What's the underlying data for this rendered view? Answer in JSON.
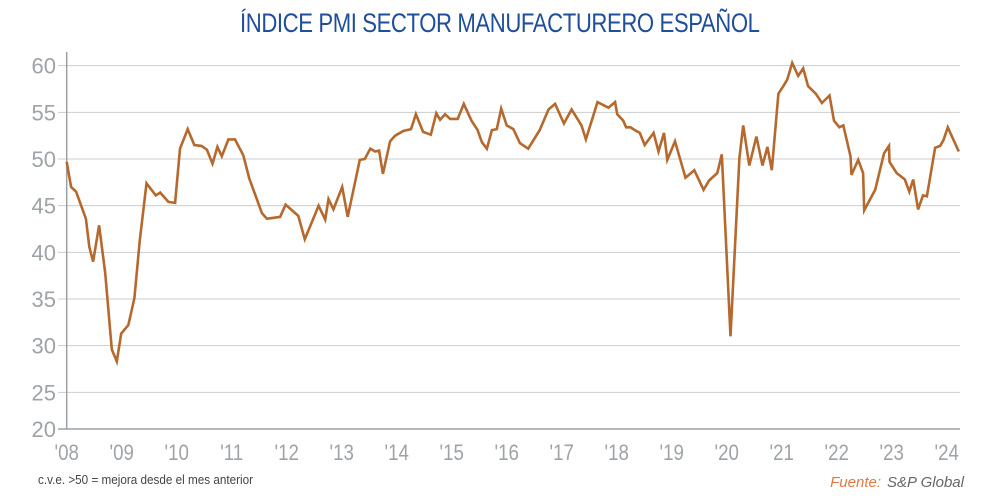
{
  "chart_data": {
    "type": "line",
    "title": "ÍNDICE PMI SECTOR MANUFACTURERO ESPAÑOL",
    "xlabel": "",
    "ylabel": "",
    "xlim": [
      2008,
      2024.25
    ],
    "ylim": [
      20,
      60
    ],
    "x_ticks": [
      2008,
      2009,
      2010,
      2011,
      2012,
      2013,
      2014,
      2015,
      2016,
      2017,
      2018,
      2019,
      2020,
      2021,
      2022,
      2023,
      2024
    ],
    "x_tick_labels": [
      "'08",
      "'09",
      "'10",
      "'11",
      "'12",
      "'13",
      "'14",
      "'15",
      "'16",
      "'17",
      "'18",
      "'19",
      "'20",
      "'21",
      "'22",
      "'23",
      "'24"
    ],
    "y_ticks": [
      20,
      25,
      30,
      35,
      40,
      45,
      50,
      55,
      60
    ],
    "y_tick_labels": [
      "20",
      "25",
      "30",
      "35",
      "40",
      "45",
      "50",
      "55",
      "60"
    ],
    "grid": "horizontal",
    "line_color": "#b5692e",
    "x": [
      2008.0,
      2008.08,
      2008.17,
      2008.35,
      2008.41,
      2008.48,
      2008.59,
      2008.7,
      2008.82,
      2008.91,
      2008.99,
      2009.12,
      2009.23,
      2009.33,
      2009.45,
      2009.62,
      2009.7,
      2009.85,
      2009.97,
      2010.06,
      2010.2,
      2010.32,
      2010.45,
      2010.55,
      2010.65,
      2010.74,
      2010.82,
      2010.94,
      2011.06,
      2011.21,
      2011.32,
      2011.55,
      2011.64,
      2011.88,
      2011.98,
      2012.21,
      2012.33,
      2012.58,
      2012.7,
      2012.76,
      2012.85,
      2013.01,
      2013.11,
      2013.33,
      2013.42,
      2013.52,
      2013.61,
      2013.68,
      2013.75,
      2013.88,
      2013.97,
      2014.12,
      2014.26,
      2014.35,
      2014.48,
      2014.62,
      2014.72,
      2014.79,
      2014.88,
      2014.97,
      2015.11,
      2015.22,
      2015.36,
      2015.47,
      2015.55,
      2015.64,
      2015.73,
      2015.82,
      2015.9,
      2016.0,
      2016.12,
      2016.24,
      2016.39,
      2016.6,
      2016.76,
      2016.88,
      2017.04,
      2017.18,
      2017.36,
      2017.44,
      2017.65,
      2017.85,
      2017.97,
      2018.01,
      2018.12,
      2018.17,
      2018.25,
      2018.33,
      2018.42,
      2018.51,
      2018.67,
      2018.76,
      2018.86,
      2018.92,
      2019.06,
      2019.25,
      2019.41,
      2019.58,
      2019.68,
      2019.83,
      2019.91,
      2020.07,
      2020.23,
      2020.3,
      2020.41,
      2020.54,
      2020.65,
      2020.74,
      2020.82,
      2020.94,
      2021.03,
      2021.1,
      2021.19,
      2021.3,
      2021.39,
      2021.48,
      2021.62,
      2021.73,
      2021.87,
      2021.95,
      2022.05,
      2022.12,
      2022.25,
      2022.27,
      2022.39,
      2022.48,
      2022.5,
      2022.7,
      2022.86,
      2022.95,
      2022.96,
      2023.09,
      2023.24,
      2023.32,
      2023.39,
      2023.48,
      2023.57,
      2023.64,
      2023.79,
      2023.88,
      2023.94,
      2024.02,
      2024.22
    ],
    "y": [
      49.7,
      47.0,
      46.5,
      43.6,
      40.6,
      39.0,
      42.9,
      37.8,
      29.6,
      28.3,
      31.3,
      32.2,
      35.1,
      41.3,
      47.4,
      46.1,
      46.4,
      45.4,
      45.3,
      51.1,
      53.2,
      51.5,
      51.4,
      51.0,
      49.5,
      51.3,
      50.3,
      52.1,
      52.1,
      50.4,
      47.9,
      44.2,
      43.6,
      43.8,
      45.1,
      43.9,
      41.4,
      45.0,
      43.5,
      45.7,
      44.6,
      47.0,
      43.8,
      49.9,
      50.0,
      51.1,
      50.8,
      50.9,
      48.4,
      51.9,
      52.5,
      53.0,
      53.2,
      54.8,
      52.9,
      52.6,
      54.9,
      54.2,
      54.8,
      54.3,
      54.3,
      55.9,
      54.1,
      53.1,
      51.8,
      51.1,
      53.1,
      53.2,
      55.4,
      53.6,
      53.2,
      51.7,
      51.1,
      53.1,
      55.3,
      55.9,
      53.8,
      55.3,
      53.6,
      52.1,
      56.1,
      55.5,
      56.1,
      54.8,
      54.1,
      53.4,
      53.4,
      53.1,
      52.8,
      51.5,
      52.8,
      50.8,
      52.8,
      49.9,
      51.9,
      48.0,
      48.8,
      46.7,
      47.7,
      48.5,
      50.5,
      31.0,
      50.1,
      53.6,
      49.3,
      52.4,
      49.3,
      51.3,
      48.8,
      57.0,
      57.8,
      58.5,
      60.3,
      58.9,
      59.7,
      57.8,
      57.0,
      56.0,
      56.8,
      54.1,
      53.4,
      53.6,
      50.3,
      48.3,
      49.9,
      48.5,
      44.5,
      46.7,
      50.6,
      51.4,
      49.7,
      48.5,
      47.8,
      46.5,
      47.8,
      44.6,
      46.1,
      46.0,
      51.2,
      51.4,
      52.0,
      53.4,
      50.8
    ]
  },
  "footer": {
    "note": "c.v.e. >50 = mejora desde el mes anterior",
    "source_label": "Fuente:",
    "source_value": "S&P Global"
  }
}
